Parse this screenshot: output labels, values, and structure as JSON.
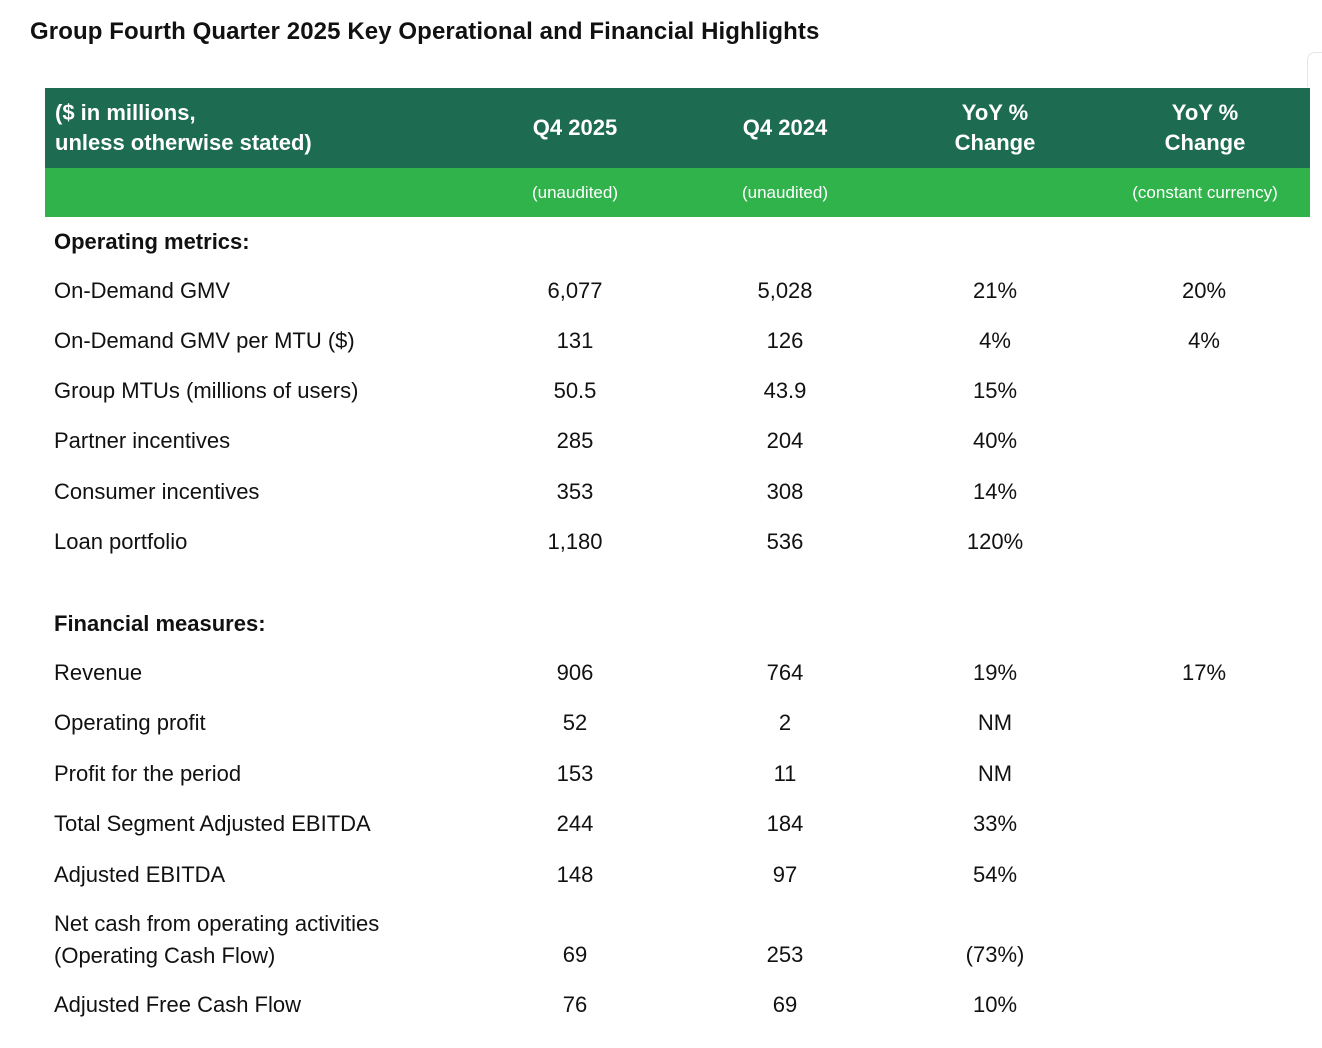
{
  "title": "Group Fourth Quarter 2025 Key Operational and Financial Highlights",
  "colors": {
    "header_dark": "#1d6b50",
    "header_light": "#2fb34a",
    "text": "#111111"
  },
  "header": {
    "label_line1": "($ in millions,",
    "label_line2": "unless otherwise stated)",
    "col1": "Q4 2025",
    "col2": "Q4 2024",
    "col3_line1": "YoY %",
    "col3_line2": "Change",
    "col4_line1": "YoY %",
    "col4_line2": "Change",
    "sub1": "(unaudited)",
    "sub2": "(unaudited)",
    "sub4": "(constant currency)"
  },
  "operating": {
    "heading": "Operating metrics:",
    "rows": [
      {
        "label": "On-Demand GMV",
        "q4_2025": "6,077",
        "q4_2024": "5,028",
        "yoy": "21%",
        "yoy_cc": "20%"
      },
      {
        "label": "On-Demand GMV per MTU ($)",
        "q4_2025": "131",
        "q4_2024": "126",
        "yoy": "4%",
        "yoy_cc": "4%"
      },
      {
        "label": "Group MTUs (millions of users)",
        "q4_2025": "50.5",
        "q4_2024": "43.9",
        "yoy": "15%",
        "yoy_cc": ""
      },
      {
        "label": "Partner incentives",
        "q4_2025": "285",
        "q4_2024": "204",
        "yoy": "40%",
        "yoy_cc": ""
      },
      {
        "label": "Consumer incentives",
        "q4_2025": "353",
        "q4_2024": "308",
        "yoy": "14%",
        "yoy_cc": ""
      },
      {
        "label": "Loan portfolio",
        "q4_2025": "1,180",
        "q4_2024": "536",
        "yoy": "120%",
        "yoy_cc": ""
      }
    ]
  },
  "financial": {
    "heading": "Financial measures:",
    "rows": [
      {
        "label": "Revenue",
        "q4_2025": "906",
        "q4_2024": "764",
        "yoy": "19%",
        "yoy_cc": "17%"
      },
      {
        "label": "Operating profit",
        "q4_2025": "52",
        "q4_2024": "2",
        "yoy": "NM",
        "yoy_cc": ""
      },
      {
        "label": "Profit for the period",
        "q4_2025": "153",
        "q4_2024": "11",
        "yoy": "NM",
        "yoy_cc": ""
      },
      {
        "label": "Total Segment Adjusted EBITDA",
        "q4_2025": "244",
        "q4_2024": "184",
        "yoy": "33%",
        "yoy_cc": ""
      },
      {
        "label": "Adjusted EBITDA",
        "q4_2025": "148",
        "q4_2024": "97",
        "yoy": "54%",
        "yoy_cc": ""
      },
      {
        "label": "Net cash from operating activities",
        "label_line2": "(Operating Cash Flow)",
        "q4_2025": "69",
        "q4_2024": "253",
        "yoy": "(73%)",
        "yoy_cc": ""
      },
      {
        "label": "Adjusted Free Cash Flow",
        "q4_2025": "76",
        "q4_2024": "69",
        "yoy": "10%",
        "yoy_cc": ""
      }
    ]
  }
}
